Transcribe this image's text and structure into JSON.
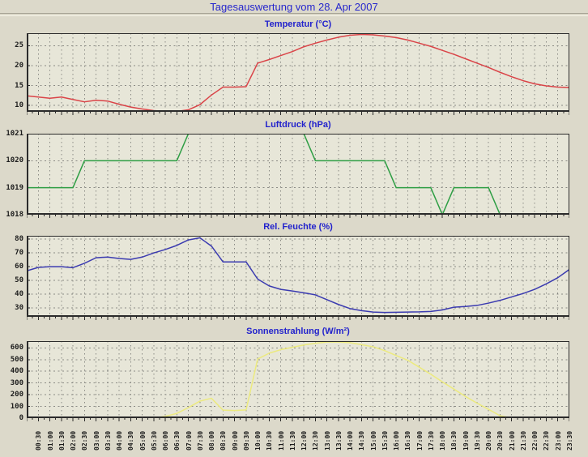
{
  "title": "Tagesauswertung vom 28. Apr 2007",
  "colors": {
    "page_bg": "#dcd9ca",
    "plot_bg": "#e7e6d8",
    "grid": "#8a8a84",
    "frame": "#2b2b2b",
    "title_text": "#2727cc",
    "tick_text": "#1c1c1c"
  },
  "x_axis": {
    "tick_labels": [
      "00:30",
      "01:00",
      "01:30",
      "02:00",
      "02:30",
      "03:00",
      "03:30",
      "04:00",
      "04:30",
      "05:00",
      "05:30",
      "06:00",
      "06:30",
      "07:00",
      "07:30",
      "08:00",
      "08:30",
      "09:00",
      "09:30",
      "10:00",
      "10:30",
      "11:00",
      "11:30",
      "12:00",
      "12:30",
      "13:00",
      "13:30",
      "14:00",
      "14:30",
      "15:00",
      "15:30",
      "16:00",
      "16:30",
      "17:00",
      "17:30",
      "18:00",
      "18:30",
      "19:00",
      "19:30",
      "20:00",
      "20:30",
      "21:00",
      "21:30",
      "22:00",
      "22:30",
      "23:00",
      "23:30"
    ]
  },
  "chart_data": [
    {
      "type": "line",
      "title": "Temperatur (°C)",
      "color": "#da4448",
      "ylim": [
        8.4,
        28.1
      ],
      "yticks": [
        10,
        15,
        20,
        25
      ],
      "x_start": "00:00",
      "x_step_minutes": 30,
      "values": [
        12.4,
        12.1,
        11.8,
        12.1,
        11.5,
        10.9,
        11.3,
        11.1,
        10.3,
        9.6,
        9.1,
        8.7,
        8.5,
        8.5,
        8.9,
        10.2,
        12.6,
        14.6,
        14.6,
        14.7,
        20.6,
        21.5,
        22.5,
        23.5,
        24.7,
        25.6,
        26.4,
        27.1,
        27.6,
        27.8,
        27.7,
        27.4,
        27.0,
        26.4,
        25.6,
        24.8,
        23.8,
        22.8,
        21.7,
        20.6,
        19.5,
        18.3,
        17.2,
        16.2,
        15.4,
        14.9,
        14.6,
        14.5
      ]
    },
    {
      "type": "line",
      "title": "Luftdruck (hPa)",
      "color": "#2e9e44",
      "ylim": [
        1018,
        1021
      ],
      "yticks": [
        1018,
        1019,
        1020,
        1021
      ],
      "x_start": "00:00",
      "x_step_minutes": 30,
      "values": [
        1019,
        1019,
        1019,
        1019,
        1019,
        1020,
        1020,
        1020,
        1020,
        1020,
        1020,
        1020,
        1020,
        1020,
        1021,
        1021,
        1021,
        1021,
        1021,
        1021,
        1021,
        1021,
        1021,
        1021,
        1021,
        1020,
        1020,
        1020,
        1020,
        1020,
        1020,
        1020,
        1019,
        1019,
        1019,
        1019,
        1018,
        1019,
        1019,
        1019,
        1019,
        1018,
        1018,
        1018,
        1018,
        1018,
        1018,
        1018
      ]
    },
    {
      "type": "line",
      "title": "Rel. Feuchte (%)",
      "color": "#3b3bb0",
      "ylim": [
        23.5,
        82.5
      ],
      "yticks": [
        30,
        40,
        50,
        60,
        70,
        80
      ],
      "x_start": "00:00",
      "x_step_minutes": 30,
      "values": [
        57,
        59.5,
        60,
        60,
        59.3,
        62.5,
        66.5,
        67,
        66,
        65.3,
        67,
        70,
        72.5,
        75.5,
        79.5,
        81,
        75,
        63.5,
        63.5,
        63.5,
        51,
        46,
        43.5,
        42.3,
        41,
        39.5,
        36,
        32.5,
        29.5,
        28,
        27,
        26.7,
        26.8,
        27,
        27.1,
        27.4,
        28.5,
        30.5,
        31,
        31.8,
        33.5,
        35.5,
        38,
        40.5,
        43.5,
        47.5,
        52,
        58
      ]
    },
    {
      "type": "line",
      "title": "Sonnenstrahlung (W/m²)",
      "color": "#ecea7e",
      "ylim": [
        0,
        658
      ],
      "yticks": [
        0,
        100,
        200,
        300,
        400,
        500,
        600
      ],
      "x_start": "00:00",
      "x_step_minutes": 30,
      "values": [
        0,
        0,
        0,
        0,
        0,
        0,
        0,
        0,
        0,
        0,
        0,
        0,
        15,
        40,
        90,
        145,
        170,
        68,
        65,
        70,
        505,
        555,
        585,
        605,
        625,
        640,
        650,
        650,
        645,
        628,
        610,
        577,
        535,
        495,
        435,
        375,
        310,
        248,
        185,
        128,
        75,
        20,
        0,
        0,
        0,
        0,
        0,
        0
      ]
    }
  ]
}
